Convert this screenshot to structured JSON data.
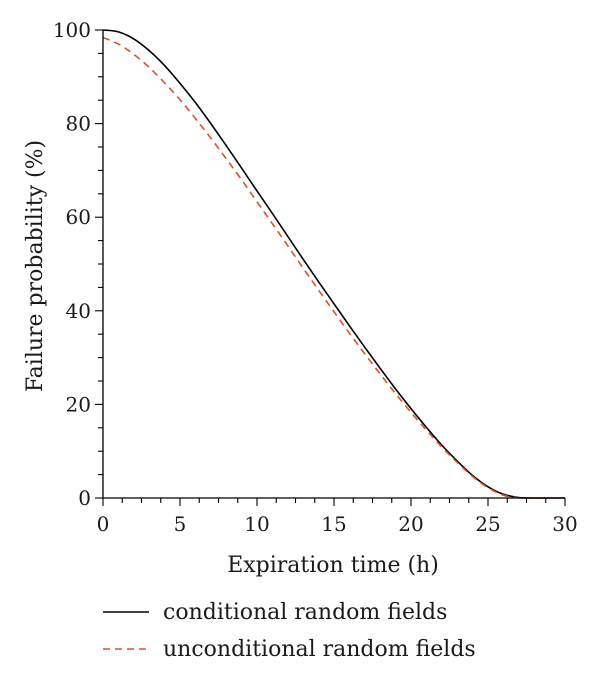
{
  "chart_data": {
    "type": "line",
    "title": "",
    "xlabel": "Expiration time (h)",
    "ylabel": "Failure probability (%)",
    "xlim": [
      0,
      30
    ],
    "ylim": [
      0,
      100
    ],
    "xticks": [
      0,
      5,
      10,
      15,
      20,
      25,
      30
    ],
    "yticks": [
      0,
      20,
      40,
      60,
      80,
      100
    ],
    "grid": false,
    "legend_position": "bottom",
    "series": [
      {
        "name": "conditional random fields",
        "style": "solid",
        "color": "#000000",
        "x": [
          0,
          1,
          2,
          3,
          4,
          5,
          6,
          7,
          8,
          9,
          10,
          11,
          12,
          13,
          14,
          15,
          16,
          17,
          18,
          19,
          20,
          21,
          22,
          23,
          24,
          25,
          26,
          27,
          28,
          29,
          30
        ],
        "y": [
          100,
          99.6,
          98.1,
          95.6,
          92.4,
          88.6,
          84.5,
          80.0,
          75.3,
          70.5,
          65.6,
          60.8,
          55.9,
          51.0,
          46.2,
          41.5,
          36.8,
          32.2,
          27.7,
          23.3,
          19.1,
          15.1,
          11.3,
          7.9,
          4.8,
          2.4,
          0.8,
          0.1,
          0,
          0,
          0
        ]
      },
      {
        "name": "unconditional random fields",
        "style": "dashed",
        "color": "#e0502a",
        "x": [
          0,
          1,
          2,
          3,
          4,
          5,
          6,
          7,
          8,
          9,
          10,
          11,
          12,
          13,
          14,
          15,
          16,
          17,
          18,
          19,
          20,
          21,
          22,
          23,
          24,
          25,
          26,
          27,
          28,
          29,
          30
        ],
        "y": [
          98.4,
          97.0,
          94.8,
          92.0,
          88.7,
          85.1,
          81.1,
          76.9,
          72.5,
          68.0,
          63.3,
          58.6,
          53.9,
          49.1,
          44.4,
          39.8,
          35.2,
          30.8,
          26.5,
          22.3,
          18.3,
          14.5,
          10.9,
          7.6,
          4.6,
          2.2,
          0.6,
          0.0,
          0,
          0,
          0
        ]
      }
    ]
  }
}
